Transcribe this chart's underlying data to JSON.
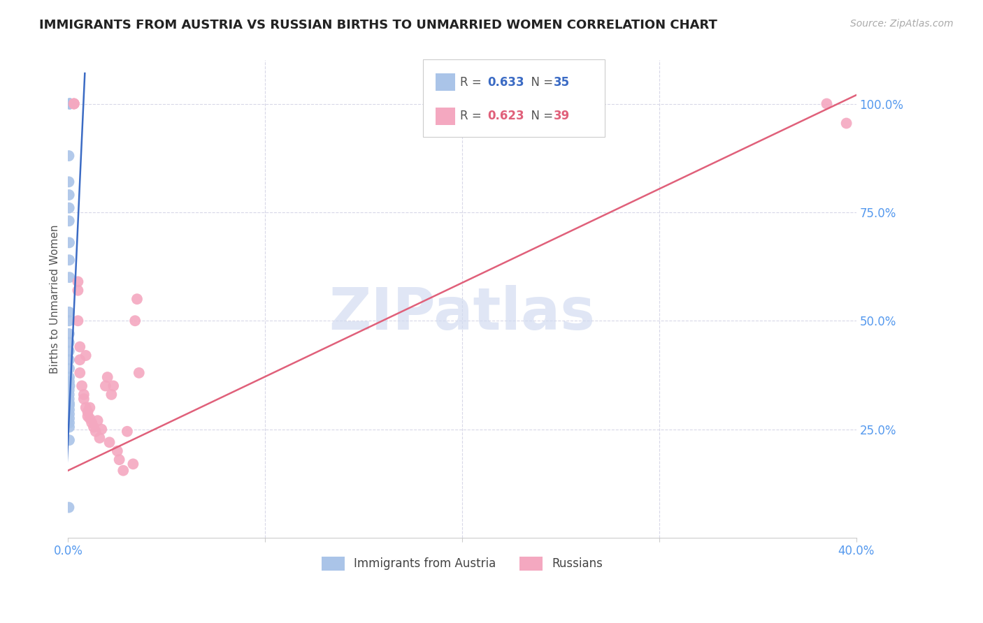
{
  "title": "IMMIGRANTS FROM AUSTRIA VS RUSSIAN BIRTHS TO UNMARRIED WOMEN CORRELATION CHART",
  "source": "Source: ZipAtlas.com",
  "ylabel": "Births to Unmarried Women",
  "legend_blue_r": "R = 0.633",
  "legend_blue_n": "N = 35",
  "legend_pink_r": "R = 0.623",
  "legend_pink_n": "N = 39",
  "legend_label_blue": "Immigrants from Austria",
  "legend_label_pink": "Russians",
  "blue_color": "#aac4e8",
  "blue_line_color": "#3b6bc4",
  "pink_color": "#f4a8c0",
  "pink_line_color": "#e0607a",
  "background_color": "#ffffff",
  "grid_color": "#d8d8e8",
  "title_color": "#222222",
  "right_axis_color": "#5599ee",
  "source_color": "#aaaaaa",
  "watermark_color": "#d0daf0",
  "blue_x": [
    0.0005,
    0.0008,
    0.0008,
    0.001,
    0.001,
    0.0004,
    0.0004,
    0.0005,
    0.0005,
    0.0005,
    0.0006,
    0.0006,
    0.0007,
    0.0005,
    0.0005,
    0.0005,
    0.0005,
    0.0005,
    0.0006,
    0.0006,
    0.0006,
    0.0006,
    0.0008,
    0.0005,
    0.0005,
    0.0005,
    0.0006,
    0.0006,
    0.0006,
    0.0006,
    0.0006,
    0.0006,
    0.0006,
    0.0006,
    0.0004
  ],
  "blue_y": [
    1.0,
    1.0,
    1.0,
    1.0,
    1.0,
    0.88,
    0.82,
    0.79,
    0.76,
    0.73,
    0.68,
    0.64,
    0.6,
    0.52,
    0.5,
    0.47,
    0.45,
    0.43,
    0.41,
    0.39,
    0.37,
    0.36,
    0.35,
    0.34,
    0.33,
    0.32,
    0.31,
    0.305,
    0.295,
    0.285,
    0.275,
    0.265,
    0.255,
    0.225,
    0.07
  ],
  "pink_x": [
    0.003,
    0.003,
    0.003,
    0.005,
    0.005,
    0.005,
    0.006,
    0.006,
    0.006,
    0.007,
    0.008,
    0.008,
    0.009,
    0.009,
    0.01,
    0.01,
    0.011,
    0.011,
    0.012,
    0.013,
    0.014,
    0.015,
    0.016,
    0.017,
    0.019,
    0.02,
    0.021,
    0.022,
    0.023,
    0.025,
    0.026,
    0.028,
    0.03,
    0.033,
    0.034,
    0.035,
    0.036,
    0.385,
    0.395
  ],
  "pink_y": [
    1.0,
    1.0,
    1.0,
    0.59,
    0.57,
    0.5,
    0.44,
    0.41,
    0.38,
    0.35,
    0.33,
    0.32,
    0.3,
    0.42,
    0.29,
    0.28,
    0.275,
    0.3,
    0.265,
    0.255,
    0.245,
    0.27,
    0.23,
    0.25,
    0.35,
    0.37,
    0.22,
    0.33,
    0.35,
    0.2,
    0.18,
    0.155,
    0.245,
    0.17,
    0.5,
    0.55,
    0.38,
    1.0,
    0.955
  ],
  "x_lim": [
    0.0,
    0.4
  ],
  "y_lim": [
    0.0,
    1.1
  ],
  "blue_trend_x": [
    -0.001,
    0.0085
  ],
  "blue_trend_y": [
    0.13,
    1.07
  ],
  "pink_trend_x": [
    0.0,
    0.4
  ],
  "pink_trend_y": [
    0.155,
    1.02
  ]
}
